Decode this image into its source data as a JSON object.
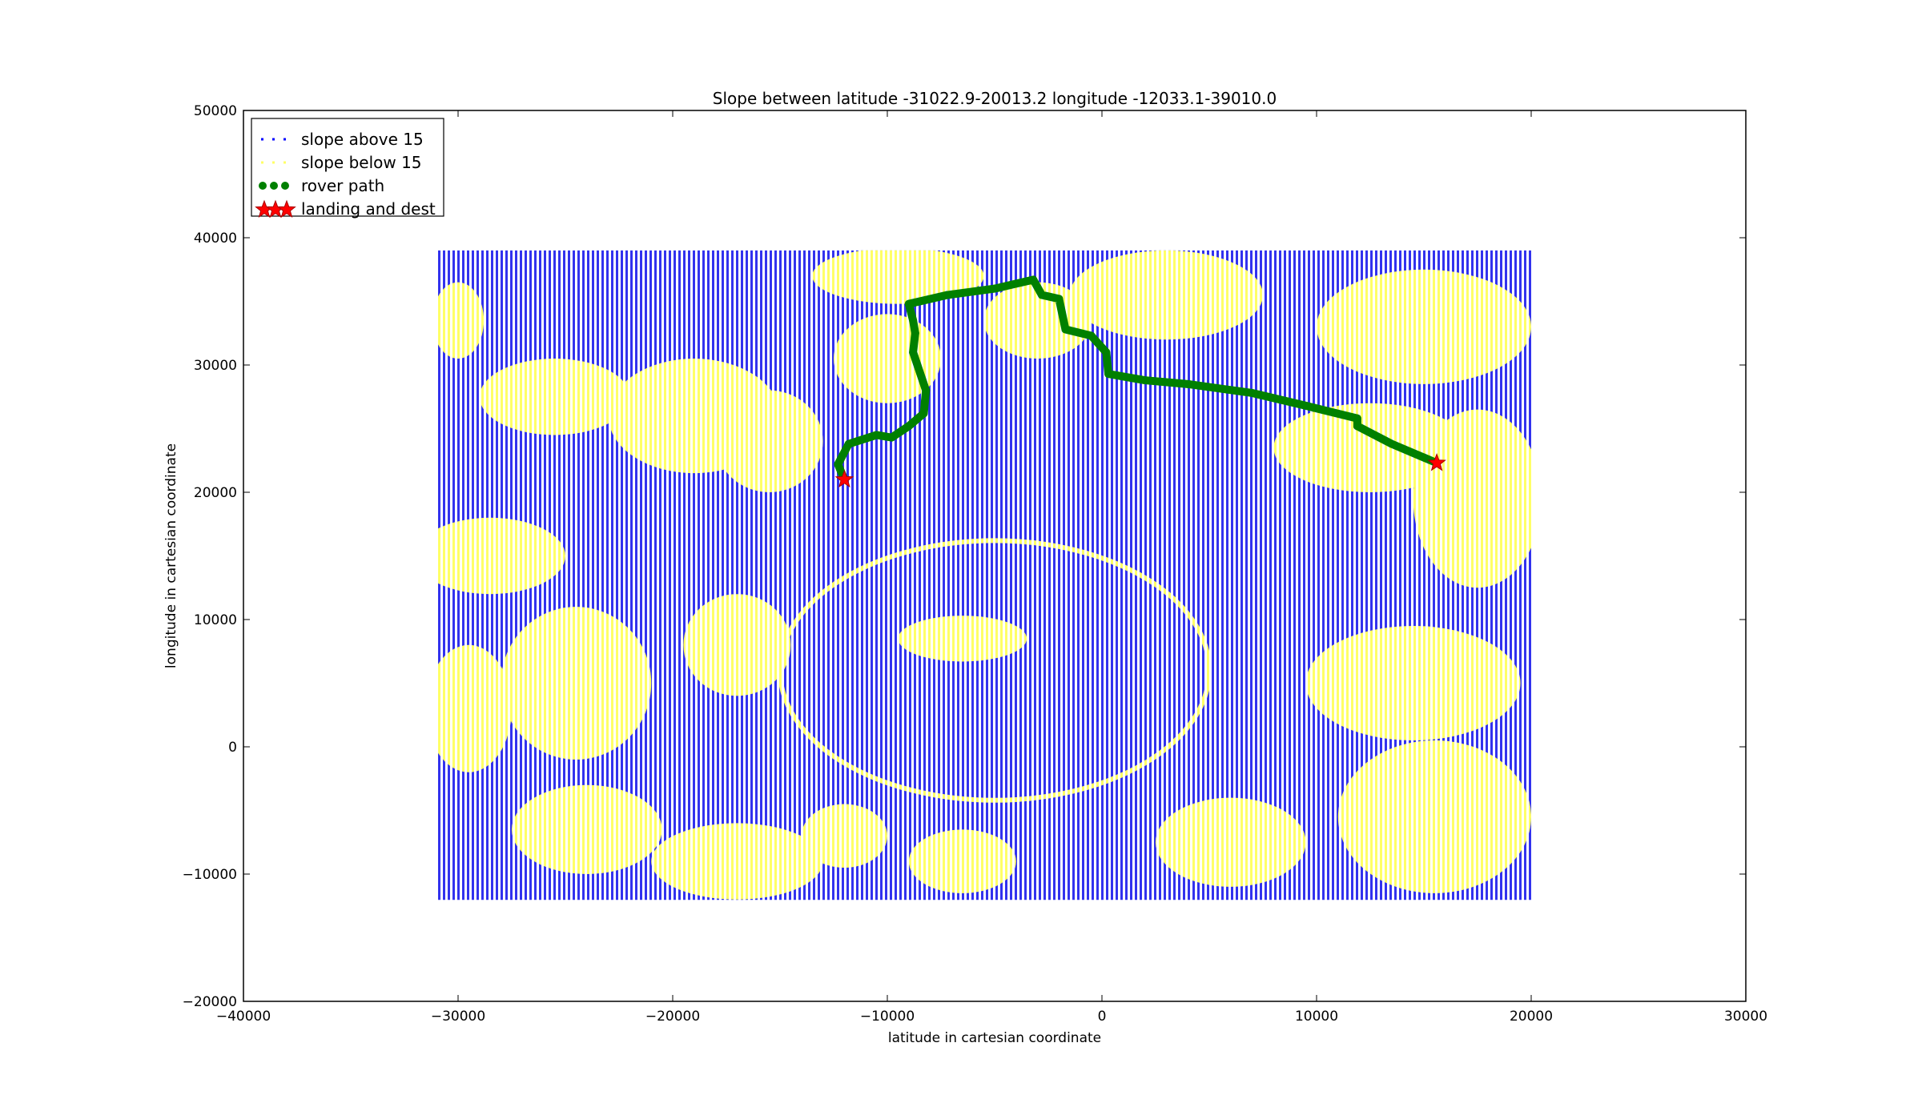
{
  "chart_data": {
    "type": "scatter",
    "title": "Slope between latitude -31022.9-20013.2 longitude -12033.1-39010.0",
    "xlabel": "latitude in cartesian coordinate",
    "ylabel": "longitude in cartesian coordinate",
    "xlim": [
      -40000,
      30000
    ],
    "ylim": [
      -20000,
      50000
    ],
    "xticks": [
      -40000,
      -30000,
      -20000,
      -10000,
      0,
      10000,
      20000,
      30000
    ],
    "yticks": [
      -20000,
      -10000,
      0,
      10000,
      20000,
      30000,
      40000,
      50000
    ],
    "xtick_labels": [
      "−40000",
      "−30000",
      "−20000",
      "−10000",
      "0",
      "10000",
      "20000",
      "30000"
    ],
    "ytick_labels": [
      "−20000",
      "−10000",
      "0",
      "10000",
      "20000",
      "30000",
      "40000",
      "50000"
    ],
    "grid": false,
    "legend_position": "top-left",
    "data_extent": {
      "x": [
        -31022.9,
        20013.2
      ],
      "y": [
        -12033.1,
        39010.0
      ]
    },
    "series": [
      {
        "name": "slope above 15",
        "color": "#0000ff",
        "marker": "point",
        "role": "background-grid"
      },
      {
        "name": "slope below 15",
        "color": "#ffff66",
        "marker": "point",
        "role": "regions",
        "regions": [
          {
            "cx": -25500,
            "cy": 27500,
            "rx": 3500,
            "ry": 3000
          },
          {
            "cx": -19000,
            "cy": 26000,
            "rx": 4000,
            "ry": 4500
          },
          {
            "cx": -15500,
            "cy": 24000,
            "rx": 2500,
            "ry": 4000
          },
          {
            "cx": -28500,
            "cy": 15000,
            "rx": 3500,
            "ry": 3000
          },
          {
            "cx": -24500,
            "cy": 5000,
            "rx": 3500,
            "ry": 6000
          },
          {
            "cx": -29500,
            "cy": 3000,
            "rx": 2000,
            "ry": 5000
          },
          {
            "cx": -17000,
            "cy": 8000,
            "rx": 2500,
            "ry": 4000
          },
          {
            "cx": -30000,
            "cy": 33500,
            "rx": 1200,
            "ry": 3000
          },
          {
            "cx": -24000,
            "cy": -6500,
            "rx": 3500,
            "ry": 3500
          },
          {
            "cx": -17000,
            "cy": -9000,
            "rx": 4000,
            "ry": 3000
          },
          {
            "cx": -12000,
            "cy": -7000,
            "rx": 2000,
            "ry": 2500
          },
          {
            "cx": -6500,
            "cy": -9000,
            "rx": 2500,
            "ry": 2500
          },
          {
            "cx": -9500,
            "cy": 37000,
            "rx": 4000,
            "ry": 2200
          },
          {
            "cx": -10000,
            "cy": 30500,
            "rx": 2500,
            "ry": 3500
          },
          {
            "cx": -3000,
            "cy": 33500,
            "rx": 2500,
            "ry": 3000
          },
          {
            "cx": 3000,
            "cy": 35500,
            "rx": 4500,
            "ry": 3500
          },
          {
            "cx": 15000,
            "cy": 33000,
            "rx": 5000,
            "ry": 4500
          },
          {
            "cx": 12500,
            "cy": 23500,
            "rx": 4500,
            "ry": 3500
          },
          {
            "cx": 17500,
            "cy": 19500,
            "rx": 3000,
            "ry": 7000
          },
          {
            "cx": 14500,
            "cy": 5000,
            "rx": 5000,
            "ry": 4500
          },
          {
            "cx": 15500,
            "cy": -5500,
            "rx": 4500,
            "ry": 6000
          },
          {
            "cx": 6000,
            "cy": -7500,
            "rx": 3500,
            "ry": 3500
          },
          {
            "cx": -6500,
            "cy": 8500,
            "rx": 3000,
            "ry": 1800
          }
        ]
      },
      {
        "name": "rover path",
        "color": "#008000",
        "marker": "circle",
        "x": [
          -12000,
          -12300,
          -11800,
          -10500,
          -9800,
          -9000,
          -8300,
          -8200,
          -8800,
          -8700,
          -8800,
          -9000,
          -7200,
          -5000,
          -3200,
          -2800,
          -2000,
          -1700,
          -500,
          200,
          300,
          2000,
          4000,
          7000,
          9500,
          11900,
          11900,
          13500,
          15600
        ],
        "y": [
          21000,
          22200,
          23800,
          24500,
          24300,
          25200,
          26200,
          28000,
          31000,
          32500,
          33500,
          34800,
          35500,
          36000,
          36700,
          35500,
          35200,
          32800,
          32300,
          31000,
          29300,
          28800,
          28500,
          27800,
          26800,
          25800,
          25200,
          23800,
          22300
        ]
      },
      {
        "name": "landing and dest",
        "color": "#ff0000",
        "marker": "star",
        "x": [
          -12000,
          15600
        ],
        "y": [
          21000,
          22300
        ]
      }
    ]
  }
}
